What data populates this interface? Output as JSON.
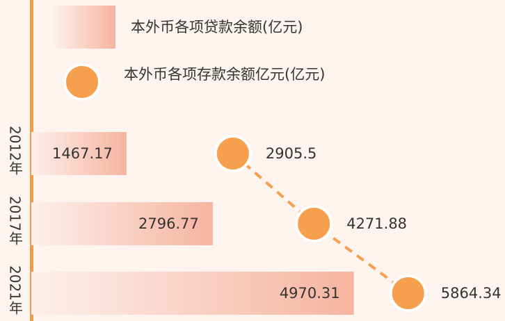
{
  "chart_data": {
    "type": "bar_dot",
    "categories": [
      "2012年",
      "2017年",
      "2021年"
    ],
    "series": [
      {
        "name": "本外币各项贷款余额(亿元)",
        "color": "#f6b4a0",
        "values": [
          1467.17,
          2796.77,
          4970.31
        ]
      },
      {
        "name": "本外币各项存款余额亿元(亿元)",
        "color": "#f6a04d",
        "values": [
          2905.5,
          4271.88,
          5864.34
        ],
        "axis": "x2"
      }
    ],
    "xlim": [
      0,
      7300
    ],
    "x2lim": [
      -500,
      7500
    ]
  }
}
